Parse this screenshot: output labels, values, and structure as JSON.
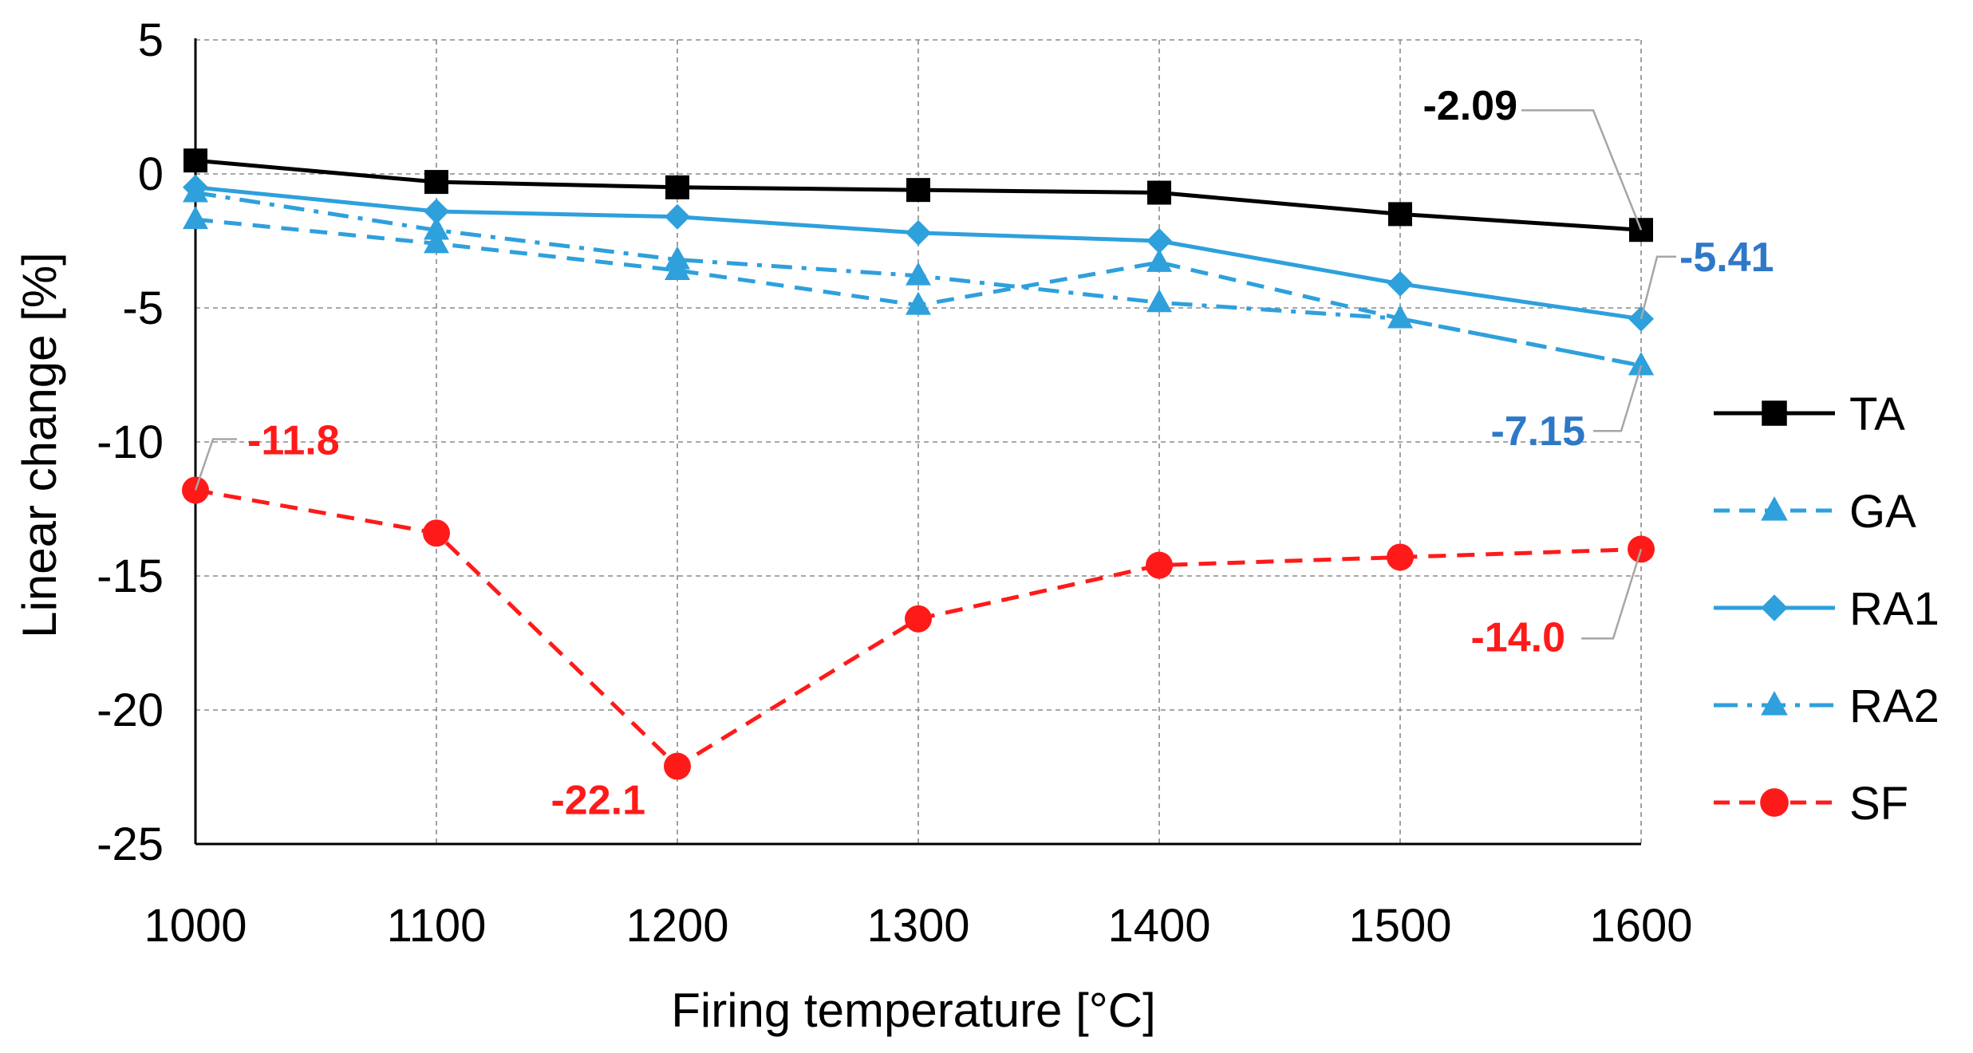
{
  "chart_data": {
    "type": "line",
    "title": "",
    "xlabel": "Firing temperature [°C]",
    "ylabel": "Linear change [%]",
    "x": [
      1000,
      1100,
      1200,
      1300,
      1400,
      1500,
      1600
    ],
    "xlim": [
      1000,
      1600
    ],
    "ylim": [
      -25,
      5
    ],
    "x_ticks": [
      "1000",
      "1100",
      "1200",
      "1300",
      "1400",
      "1500",
      "1600"
    ],
    "y_ticks": [
      "5",
      "0",
      "-5",
      "-10",
      "-15",
      "-20",
      "-25"
    ],
    "grid": true,
    "legend_position": "right",
    "series": [
      {
        "name": "TA",
        "values": [
          0.5,
          -0.3,
          -0.5,
          -0.6,
          -0.7,
          -1.5,
          -2.09
        ],
        "color": "#000000",
        "dash": "solid",
        "marker": "square"
      },
      {
        "name": "GA",
        "values": [
          -1.7,
          -2.6,
          -3.6,
          -4.9,
          -3.3,
          -5.4,
          -7.15
        ],
        "color": "#2ea0dc",
        "dash": "dash",
        "marker": "triangle"
      },
      {
        "name": "RA1",
        "values": [
          -0.5,
          -1.4,
          -1.6,
          -2.2,
          -2.5,
          -4.1,
          -5.41
        ],
        "color": "#2ea0dc",
        "dash": "solid",
        "marker": "diamond"
      },
      {
        "name": "RA2",
        "values": [
          -0.7,
          -2.1,
          -3.2,
          -3.8,
          -4.8,
          -5.4,
          -7.15
        ],
        "color": "#2ea0dc",
        "dash": "dashdot",
        "marker": "triangle"
      },
      {
        "name": "SF",
        "values": [
          -11.8,
          -13.4,
          -22.1,
          -16.6,
          -14.6,
          -14.3,
          -14.0
        ],
        "color": "#ff1a1a",
        "dash": "dash",
        "marker": "circle"
      }
    ],
    "annotations": [
      {
        "text": "-2.09",
        "series": "TA",
        "index": 6,
        "color": "#000000"
      },
      {
        "text": "-5.41",
        "series": "RA1",
        "index": 6,
        "color": "#2f78c8"
      },
      {
        "text": "-7.15",
        "series": "GA",
        "index": 6,
        "color": "#2f78c8"
      },
      {
        "text": "-11.8",
        "series": "SF",
        "index": 0,
        "color": "#ff1a1a"
      },
      {
        "text": "-22.1",
        "series": "SF",
        "index": 2,
        "color": "#ff1a1a"
      },
      {
        "text": "-14.0",
        "series": "SF",
        "index": 6,
        "color": "#ff1a1a"
      }
    ]
  }
}
